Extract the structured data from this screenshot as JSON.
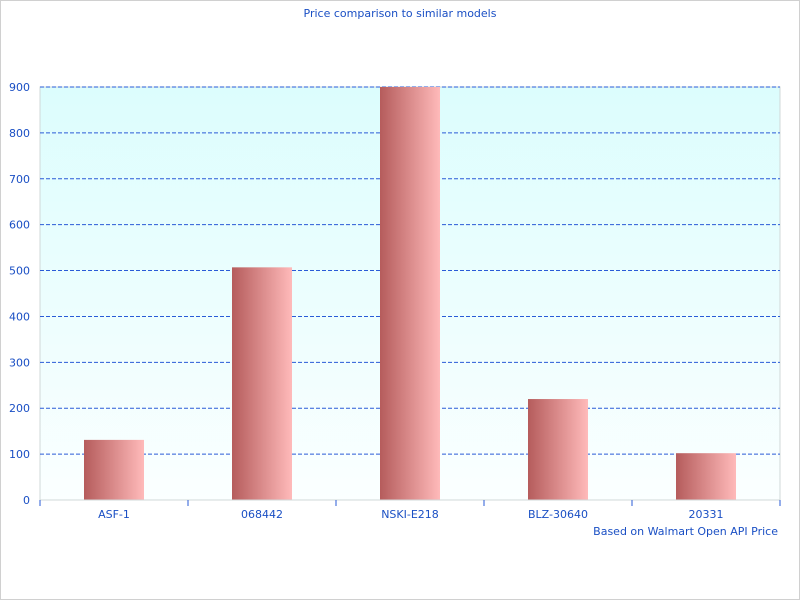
{
  "chart_data": {
    "type": "bar",
    "title": "Price comparison to similar models",
    "categories": [
      "ASF-1",
      "068442",
      "NSKI-E218",
      "BLZ-30640",
      "20331"
    ],
    "values": [
      131,
      507,
      900,
      220,
      102
    ],
    "ylim": [
      0,
      900
    ],
    "yticks": [
      0,
      100,
      200,
      300,
      400,
      500,
      600,
      700,
      800,
      900
    ],
    "grid": true,
    "annotation": "Based on Walmart Open API Price",
    "colors": {
      "bar_dark": "#b55c5c",
      "bar_light": "#ffbaba",
      "plot_top": "#dcfdfd",
      "plot_bottom": "#fbffff",
      "grid": "#2a5bd7",
      "text": "#1a4fc4"
    }
  }
}
